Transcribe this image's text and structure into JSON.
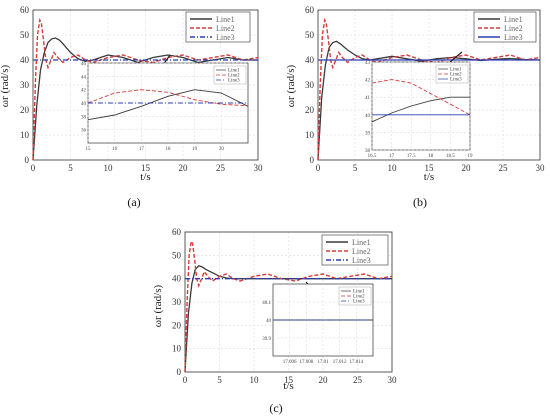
{
  "captions": [
    "(a)",
    "(b)",
    "(c)"
  ],
  "chart_data": [
    {
      "type": "line",
      "panel": "(a)",
      "xlabel": "t/s",
      "ylabel": "ωr (rad/s)",
      "xlim": [
        0,
        30
      ],
      "ylim": [
        0,
        60
      ],
      "xticks": [
        0,
        5,
        10,
        15,
        20,
        25,
        30
      ],
      "yticks": [
        0,
        10,
        20,
        30,
        40,
        50,
        60
      ],
      "grid": true,
      "legend": "top-right",
      "series": [
        {
          "name": "Line1",
          "color": "#3a3a3a",
          "dash": "solid",
          "x": [
            0,
            0.5,
            1,
            1.5,
            2,
            2.5,
            3,
            3.5,
            4,
            5,
            6,
            7,
            8,
            9,
            10,
            12,
            14,
            16,
            18,
            20,
            22,
            24,
            26,
            28,
            30
          ],
          "y": [
            0,
            22,
            36,
            43,
            47,
            48.5,
            48.8,
            48,
            46.5,
            43,
            40.5,
            39.5,
            40,
            41,
            42,
            41,
            39,
            41,
            42,
            41,
            39,
            40,
            41,
            40,
            40
          ]
        },
        {
          "name": "Line2",
          "color": "#d93a3a",
          "dash": "dashed",
          "x": [
            0,
            0.3,
            0.6,
            0.9,
            1.1,
            1.4,
            1.7,
            2,
            2.4,
            2.8,
            3.3,
            4,
            5,
            6,
            7,
            8,
            10,
            12,
            14,
            16,
            18,
            20,
            22,
            24,
            26,
            28,
            30
          ],
          "y": [
            0,
            30,
            50,
            56,
            55,
            48,
            40,
            37,
            40,
            43,
            41,
            39,
            41,
            42,
            40,
            39,
            41,
            42,
            40,
            39,
            41,
            42,
            40,
            41,
            42,
            40,
            41
          ]
        },
        {
          "name": "Line3",
          "color": "#2c3fb3",
          "dash": "dashdot",
          "x": [
            0,
            30
          ],
          "y": [
            40,
            40
          ]
        }
      ],
      "inset": {
        "xlim": [
          15,
          21
        ],
        "ylim": [
          34,
          46
        ],
        "xticks": [
          15,
          16,
          17,
          18,
          19,
          20
        ],
        "yticks": [
          36,
          38,
          40,
          42,
          44,
          46
        ],
        "legend": [
          "Line1",
          "Line2",
          "Line3"
        ],
        "series": [
          {
            "name": "Line1",
            "x": [
              15,
              16,
              17,
              18,
              19,
              20,
              21
            ],
            "y": [
              37.5,
              38.2,
              39.5,
              41,
              42,
              41.5,
              39.5
            ]
          },
          {
            "name": "Line2",
            "x": [
              15,
              16,
              17,
              18,
              19,
              20,
              21
            ],
            "y": [
              40,
              41.5,
              42,
              41.6,
              40.5,
              39.8,
              39.6
            ]
          },
          {
            "name": "Line3",
            "x": [
              15,
              21
            ],
            "y": [
              40,
              40
            ]
          }
        ]
      }
    },
    {
      "type": "line",
      "panel": "(b)",
      "xlabel": "t/s",
      "ylabel": "ωr (rad/s)",
      "xlim": [
        0,
        30
      ],
      "ylim": [
        0,
        60
      ],
      "xticks": [
        0,
        5,
        10,
        15,
        20,
        25,
        30
      ],
      "yticks": [
        0,
        10,
        20,
        30,
        40,
        50,
        60
      ],
      "grid": true,
      "legend": "top-right",
      "series": [
        {
          "name": "Line1",
          "color": "#3a3a3a",
          "dash": "solid",
          "x": [
            0,
            0.5,
            1,
            1.5,
            2,
            2.5,
            3,
            4,
            5,
            6,
            7,
            8,
            10,
            12,
            14,
            16,
            18,
            20,
            22,
            24,
            26,
            28,
            30
          ],
          "y": [
            0,
            25,
            38,
            45,
            47,
            47.5,
            46.5,
            44,
            42,
            40.5,
            40,
            40.5,
            41.5,
            40.5,
            39.5,
            40.5,
            41,
            40.5,
            39.8,
            40.3,
            40.6,
            40.2,
            40
          ]
        },
        {
          "name": "Line2",
          "color": "#d93a3a",
          "dash": "dashed",
          "x": [
            0,
            0.3,
            0.6,
            0.9,
            1.1,
            1.4,
            1.7,
            2,
            2.4,
            2.8,
            3.3,
            4,
            5,
            6,
            7,
            8,
            10,
            12,
            14,
            16,
            18,
            20,
            22,
            24,
            26,
            28,
            30
          ],
          "y": [
            0,
            30,
            50,
            56,
            55,
            48,
            40,
            37,
            40,
            43,
            41,
            39,
            41,
            42,
            40,
            39,
            41,
            42,
            40,
            39,
            41,
            42,
            40,
            41,
            42,
            40,
            41
          ]
        },
        {
          "name": "Line3",
          "color": "#2c3fb3",
          "dash": "solid",
          "x": [
            0,
            30
          ],
          "y": [
            40,
            40
          ]
        }
      ],
      "inset": {
        "xlim": [
          16.5,
          19
        ],
        "ylim": [
          38,
          43
        ],
        "xticks": [
          16.5,
          17,
          17.5,
          18,
          18.5,
          19
        ],
        "yticks": [
          38,
          39,
          40,
          41,
          42,
          43
        ],
        "legend": [
          "Line1",
          "Line2",
          "Line3"
        ],
        "series": [
          {
            "name": "Line1",
            "x": [
              16.5,
              17,
              17.5,
              18,
              18.5,
              19
            ],
            "y": [
              39.6,
              40.1,
              40.5,
              40.8,
              41,
              41
            ]
          },
          {
            "name": "Line2",
            "x": [
              16.5,
              17,
              17.5,
              18,
              18.5,
              19
            ],
            "y": [
              41.8,
              42,
              41.8,
              41.2,
              40.6,
              40
            ]
          },
          {
            "name": "Line3",
            "x": [
              16.5,
              19
            ],
            "y": [
              40,
              40
            ]
          }
        ]
      }
    },
    {
      "type": "line",
      "panel": "(c)",
      "xlabel": "t/s",
      "ylabel": "ωr (rad/s)",
      "xlim": [
        0,
        30
      ],
      "ylim": [
        0,
        60
      ],
      "xticks": [
        0,
        5,
        10,
        15,
        20,
        25,
        30
      ],
      "yticks": [
        0,
        10,
        20,
        30,
        40,
        50,
        60
      ],
      "grid": true,
      "legend": "top-right",
      "series": [
        {
          "name": "Line1",
          "color": "#3a3a3a",
          "dash": "solid",
          "x": [
            0,
            0.5,
            1,
            1.5,
            2,
            2.5,
            3,
            4,
            5,
            6,
            7,
            8,
            10,
            12,
            14,
            16,
            18,
            20,
            22,
            24,
            26,
            28,
            30
          ],
          "y": [
            0,
            25,
            38,
            44,
            45.5,
            45,
            44,
            42.5,
            41,
            40.3,
            40,
            40,
            40,
            40,
            40,
            40,
            40,
            40,
            40,
            40,
            40,
            40,
            40
          ]
        },
        {
          "name": "Line2",
          "color": "#d93a3a",
          "dash": "dashed",
          "x": [
            0,
            0.3,
            0.6,
            0.9,
            1.1,
            1.4,
            1.7,
            2,
            2.4,
            2.8,
            3.3,
            4,
            5,
            6,
            7,
            8,
            10,
            12,
            14,
            16,
            18,
            20,
            22,
            24,
            26,
            28,
            30
          ],
          "y": [
            0,
            30,
            50,
            56,
            55,
            48,
            40,
            37,
            40,
            43,
            41,
            39,
            41,
            42,
            40,
            39,
            41,
            42,
            40,
            39,
            41,
            42,
            40,
            41,
            42,
            40,
            41
          ]
        },
        {
          "name": "Line3",
          "color": "#2c3fb3",
          "dash": "dashdot",
          "x": [
            0,
            30
          ],
          "y": [
            40,
            40
          ]
        }
      ],
      "inset": {
        "xlim": [
          17.004,
          17.016
        ],
        "ylim": [
          39.8,
          40.2
        ],
        "xticks": [
          17.006,
          17.008,
          17.01,
          17.012,
          17.014
        ],
        "xtick_labels": [
          "17.006",
          "17.008",
          "17.01",
          "17.012",
          "17.014"
        ],
        "yticks": [
          39.9,
          40,
          40.1
        ],
        "ytick_labels": [
          "39.9",
          "40",
          "40.1"
        ],
        "legend": [
          "Line1",
          "Line2",
          "Line3"
        ],
        "series": [
          {
            "name": "Line1",
            "x": [
              17.004,
              17.016
            ],
            "y": [
              40.0,
              40.0
            ]
          },
          {
            "name": "Line3",
            "x": [
              17.004,
              17.016
            ],
            "y": [
              40,
              40
            ]
          }
        ]
      }
    }
  ]
}
